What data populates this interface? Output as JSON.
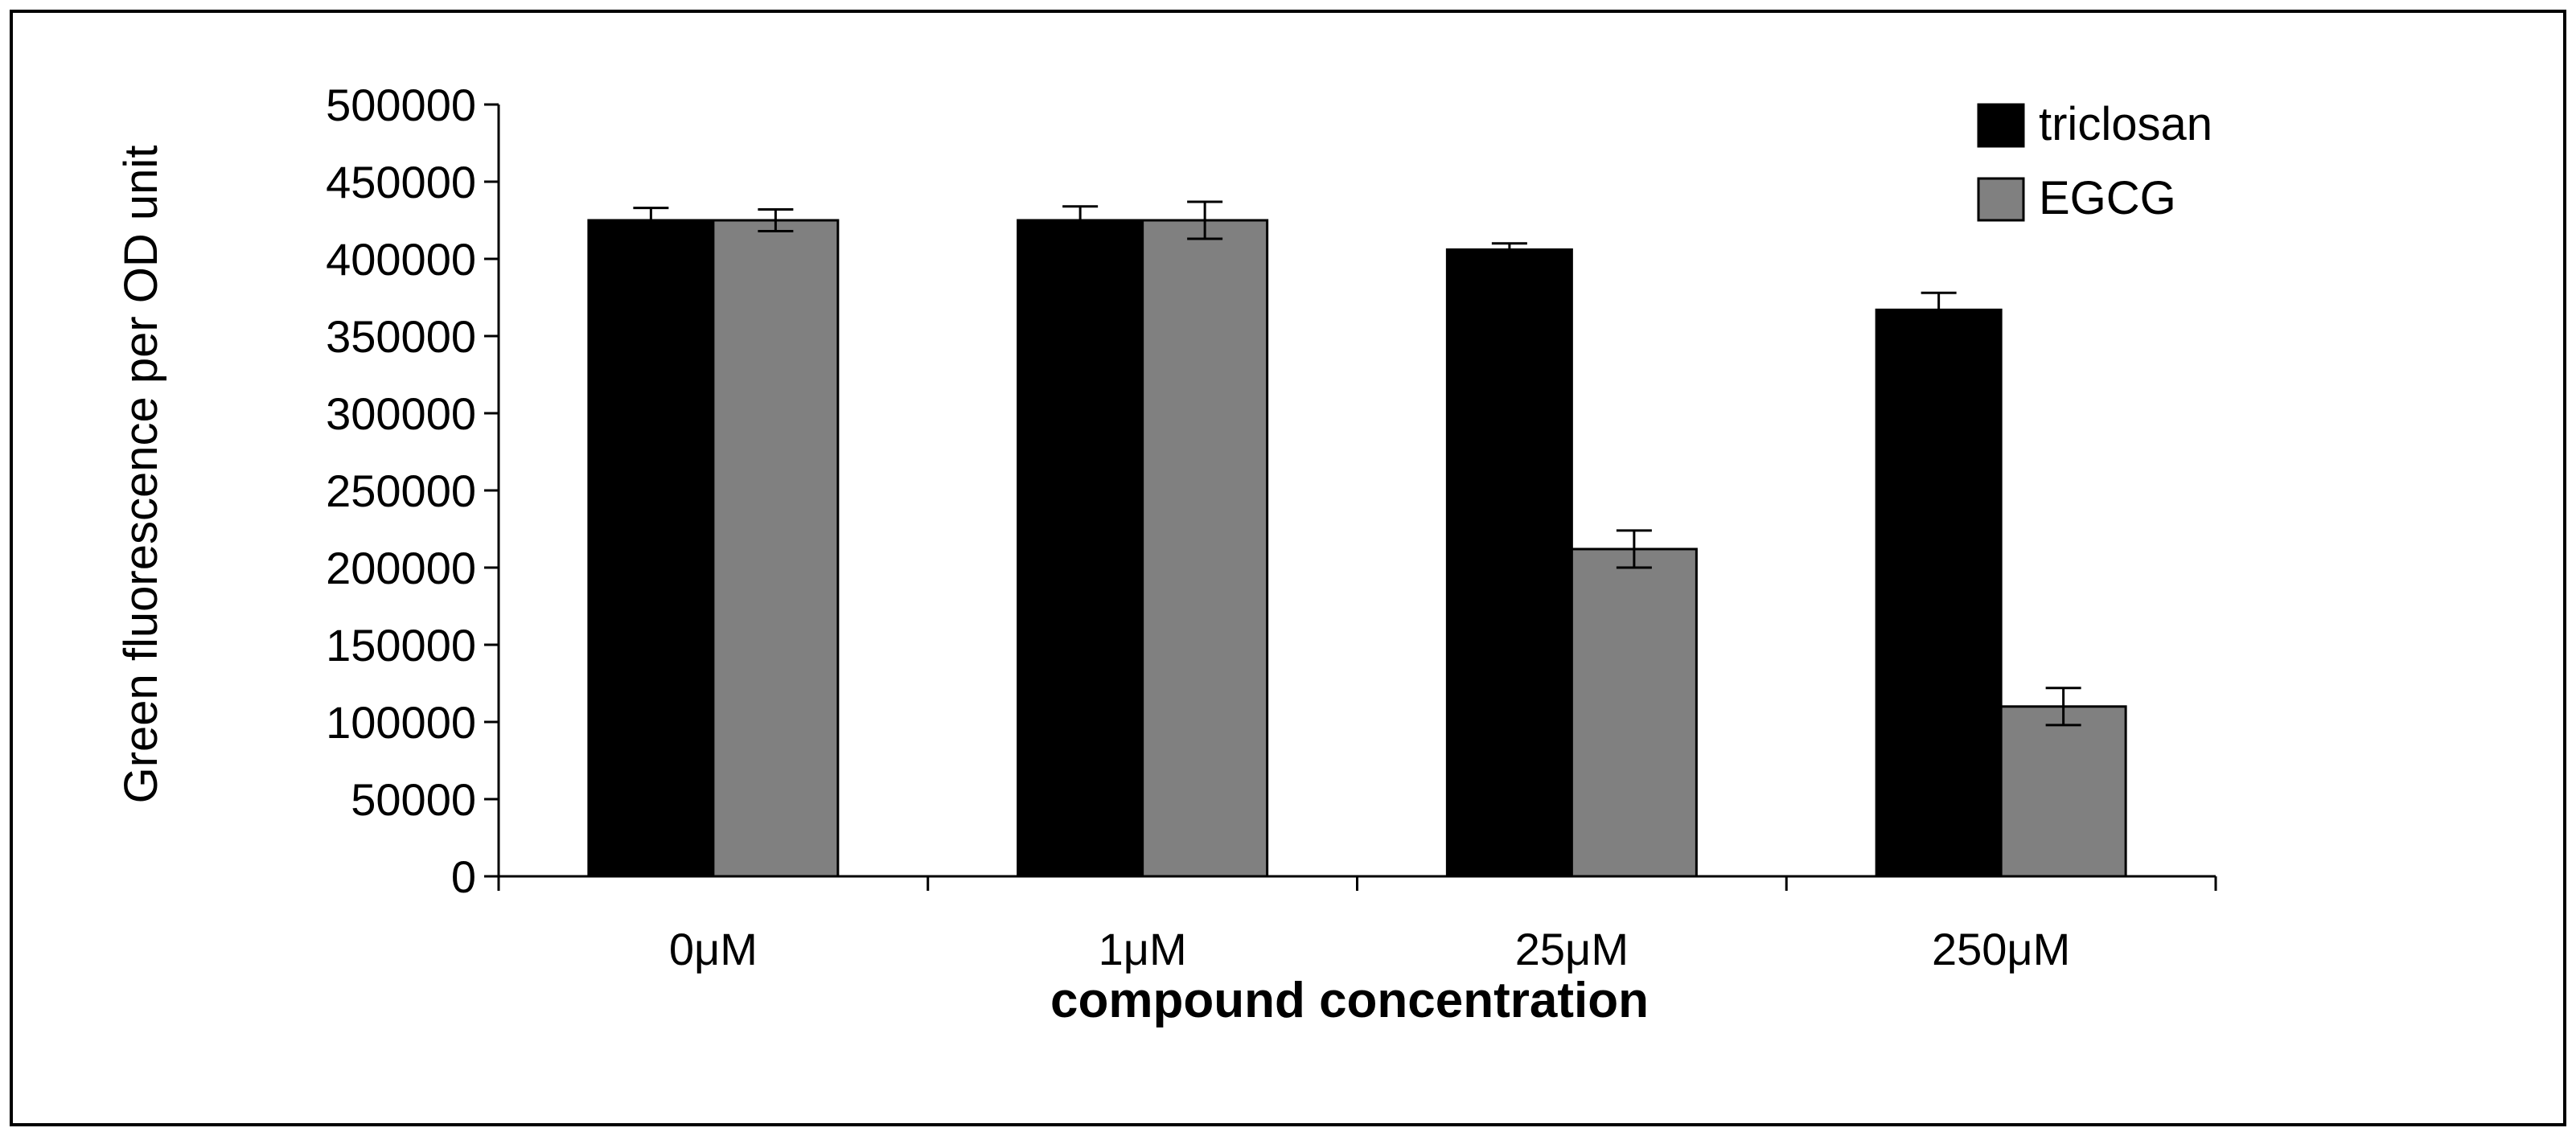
{
  "chart_data": {
    "type": "bar",
    "title": "",
    "xlabel": "compound concentration",
    "ylabel": "Green fluorescence per OD unit",
    "categories": [
      "0μM",
      "1μM",
      "25μM",
      "250μM"
    ],
    "ylim": [
      0,
      500000
    ],
    "yticks": [
      "0",
      "50000",
      "100000",
      "150000",
      "200000",
      "250000",
      "300000",
      "350000",
      "400000",
      "450000",
      "500000"
    ],
    "grid": false,
    "legend_position": "top-right",
    "series": [
      {
        "name": "triclosan",
        "color": "#000000",
        "values": [
          425000,
          425000,
          406000,
          367000
        ],
        "errors": [
          8000,
          9000,
          4000,
          11000
        ]
      },
      {
        "name": "EGCG",
        "color": "#808080",
        "values": [
          425000,
          425000,
          212000,
          110000
        ],
        "errors": [
          7000,
          12000,
          12000,
          12000
        ]
      }
    ]
  }
}
